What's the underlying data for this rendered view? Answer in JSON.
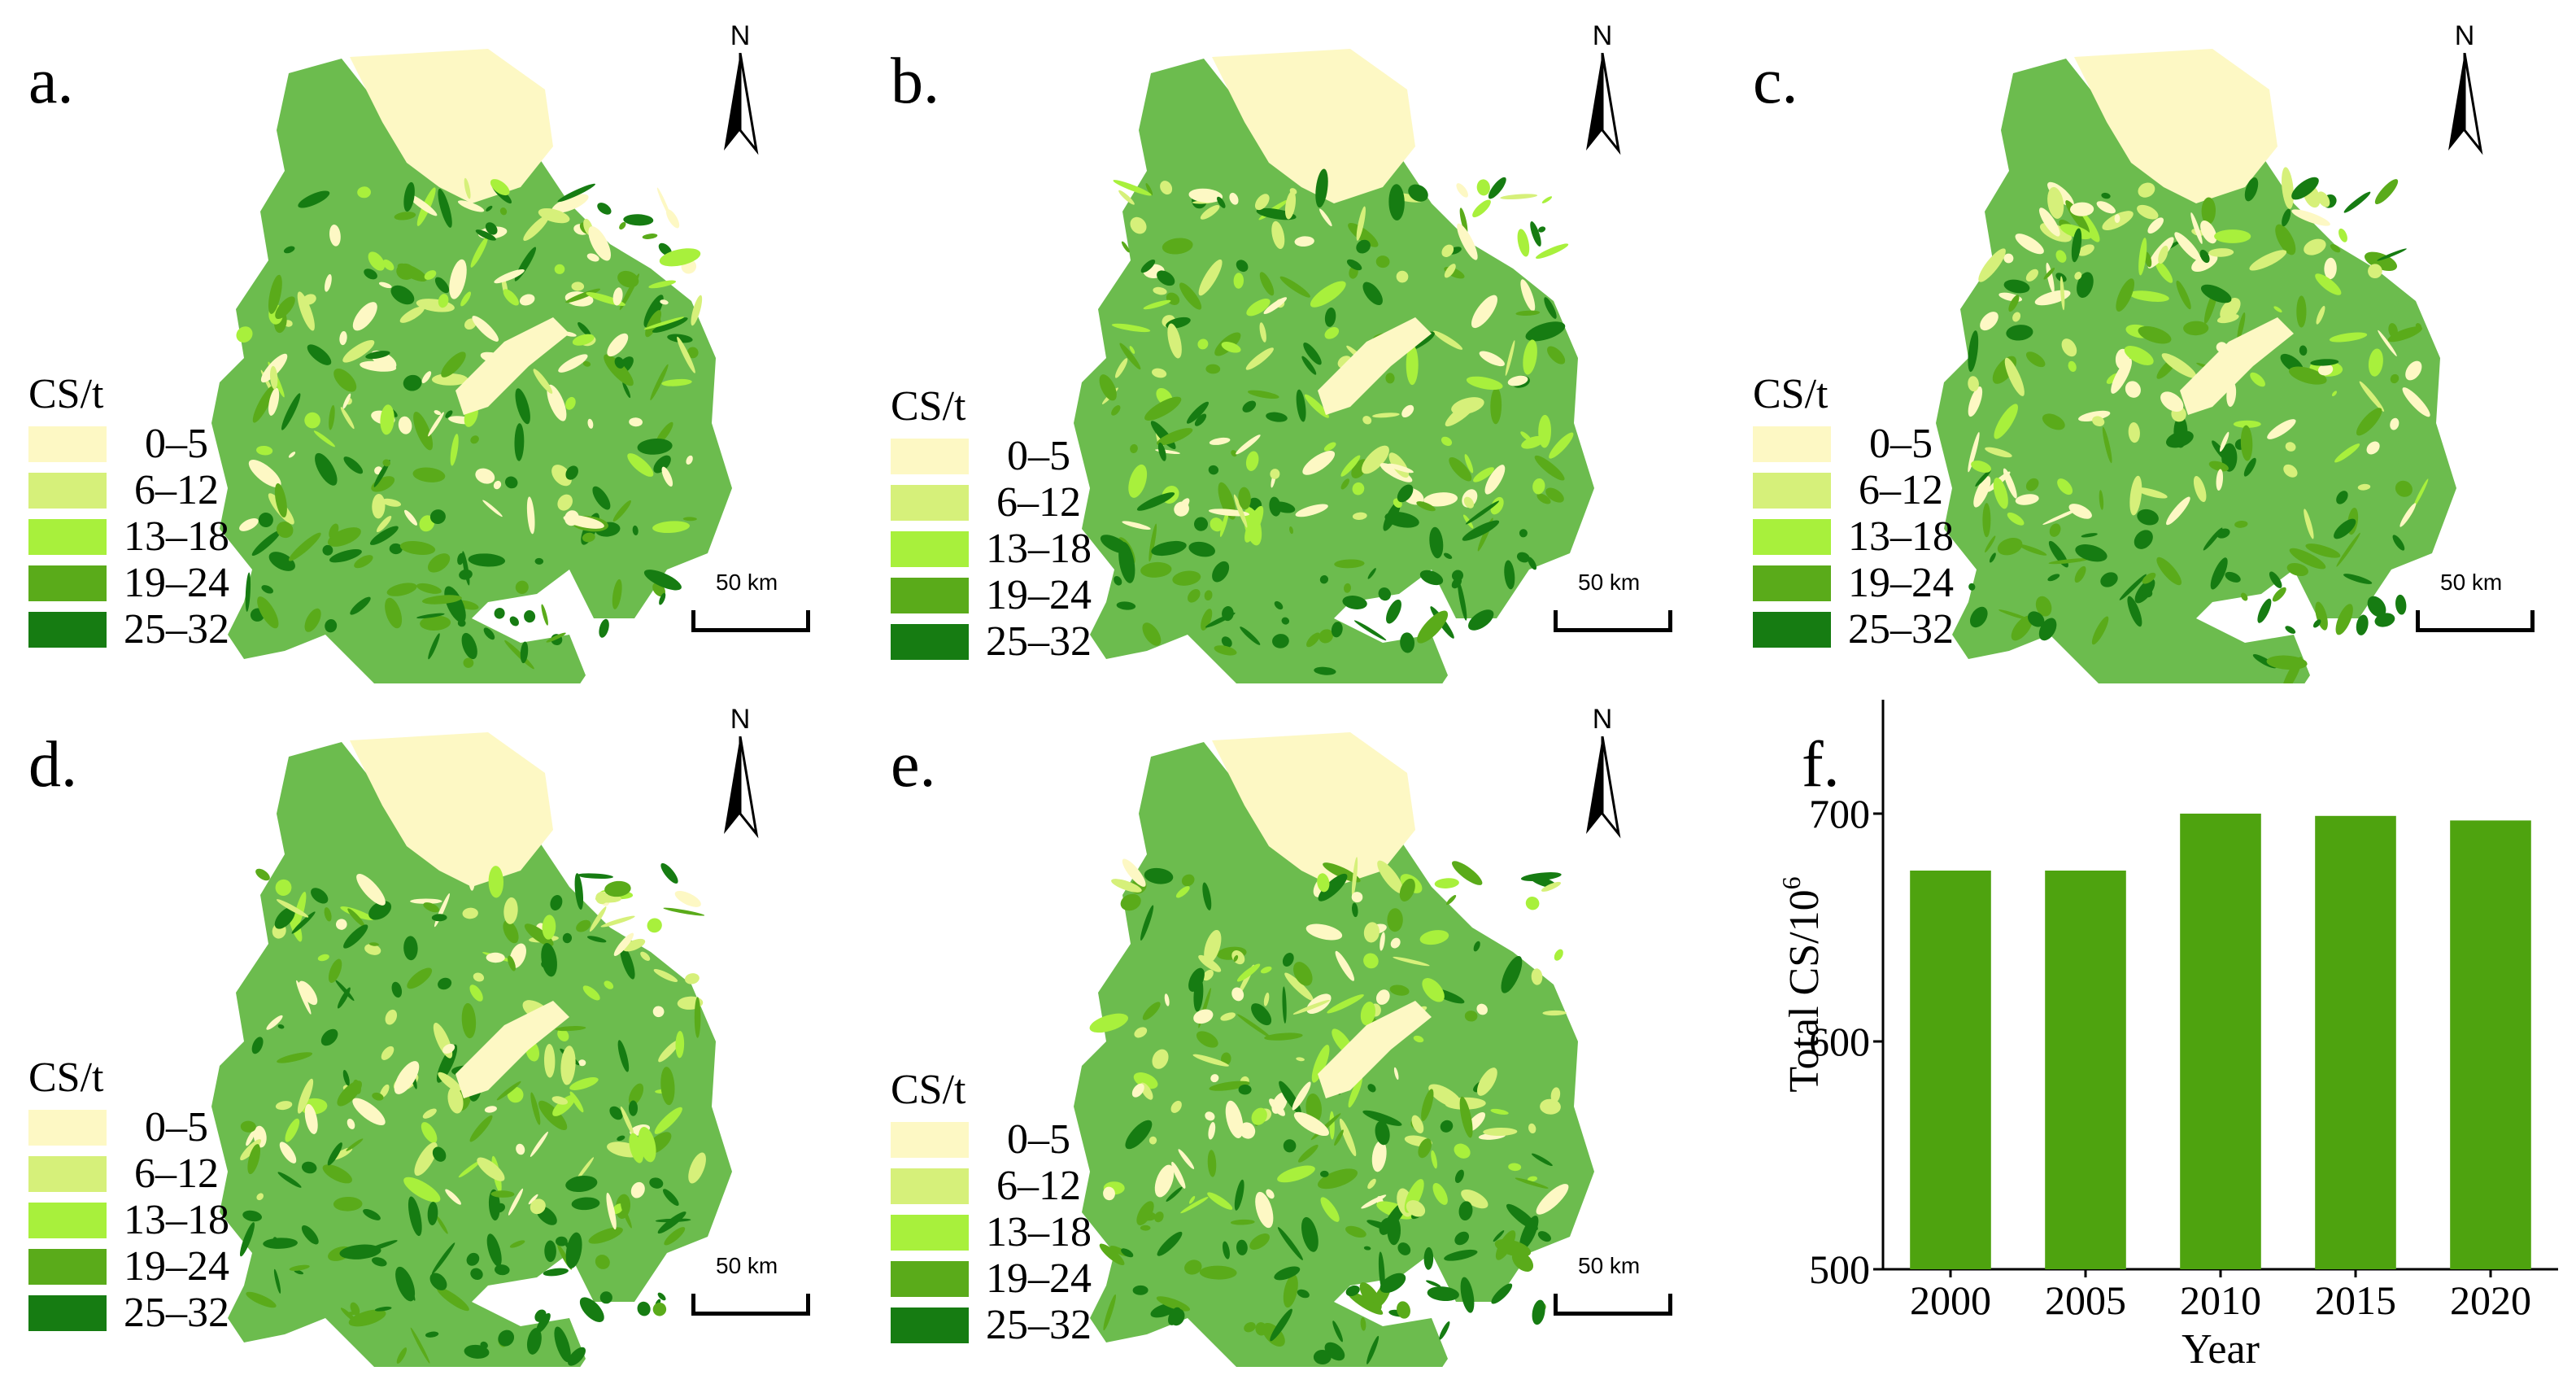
{
  "colors": {
    "class_0_5": "#fdf8c4",
    "class_6_12": "#d6f07a",
    "class_13_18": "#a8f03c",
    "class_19_24": "#5aab1a",
    "class_25_32": "#167c12",
    "map_base": "#6cbc4e",
    "bar": "#4ea30f"
  },
  "legend": {
    "title": "CS/t",
    "classes": [
      "0–5",
      "6–12",
      "13–18",
      "19–24",
      "25–32"
    ]
  },
  "north_label": "N",
  "scale_label": "50 km",
  "panels": [
    {
      "letter": "a."
    },
    {
      "letter": "b."
    },
    {
      "letter": "c."
    },
    {
      "letter": "d."
    },
    {
      "letter": "e."
    }
  ],
  "chart_panel_letter": "f.",
  "chart_data": {
    "type": "bar",
    "categories": [
      "2000",
      "2005",
      "2010",
      "2015",
      "2020"
    ],
    "values": [
      675,
      675,
      700,
      699,
      697
    ],
    "xlabel": "Year",
    "ylabel": "Total CS/10",
    "ylabel_superscript": "6",
    "ylim": [
      500,
      750
    ],
    "yticks": [
      500,
      600,
      700
    ],
    "grid": false
  }
}
